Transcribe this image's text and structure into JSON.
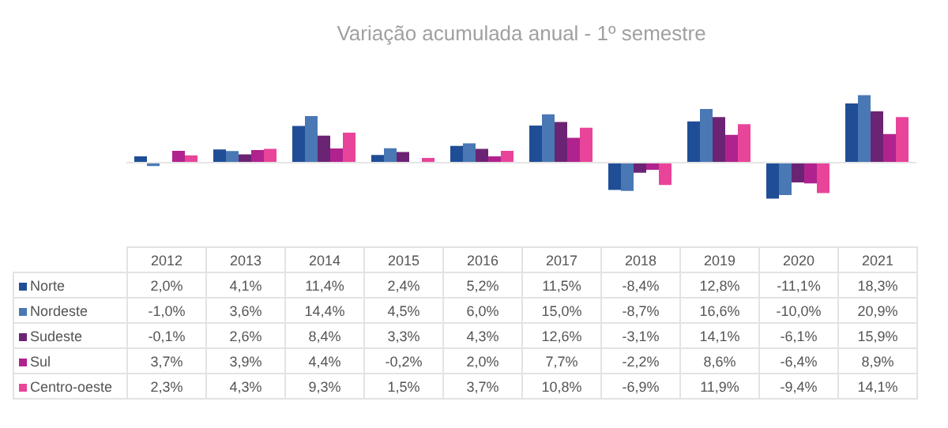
{
  "chart_data": {
    "type": "bar",
    "title": "Variação acumulada anual - 1º semestre",
    "legend": "bottom left",
    "categories": [
      "2012",
      "2013",
      "2014",
      "2015",
      "2016",
      "2017",
      "2018",
      "2019",
      "2020",
      "2021"
    ],
    "series": [
      {
        "name": "Norte",
        "color": "#1f4e96",
        "values": [
          2.0,
          4.1,
          11.4,
          2.4,
          5.2,
          11.5,
          -8.4,
          12.8,
          -11.1,
          18.3
        ],
        "value_labels": [
          "2,0%",
          "4,1%",
          "11,4%",
          "2,4%",
          "5,2%",
          "11,5%",
          "-8,4%",
          "12,8%",
          "-11,1%",
          "18,3%"
        ]
      },
      {
        "name": "Nordeste",
        "color": "#4a78b5",
        "values": [
          -1.0,
          3.6,
          14.4,
          4.5,
          6.0,
          15.0,
          -8.7,
          16.6,
          -10.0,
          20.9
        ],
        "value_labels": [
          "-1,0%",
          "3,6%",
          "14,4%",
          "4,5%",
          "6,0%",
          "15,0%",
          "-8,7%",
          "16,6%",
          "-10,0%",
          "20,9%"
        ]
      },
      {
        "name": "Sudeste",
        "color": "#6b2473",
        "values": [
          -0.1,
          2.6,
          8.4,
          3.3,
          4.3,
          12.6,
          -3.1,
          14.1,
          -6.1,
          15.9
        ],
        "value_labels": [
          "-0,1%",
          "2,6%",
          "8,4%",
          "3,3%",
          "4,3%",
          "12,6%",
          "-3,1%",
          "14,1%",
          "-6,1%",
          "15,9%"
        ]
      },
      {
        "name": "Sul",
        "color": "#b0238f",
        "values": [
          3.7,
          3.9,
          4.4,
          -0.2,
          2.0,
          7.7,
          -2.2,
          8.6,
          -6.4,
          8.9
        ],
        "value_labels": [
          "3,7%",
          "3,9%",
          "4,4%",
          "-0,2%",
          "2,0%",
          "7,7%",
          "-2,2%",
          "8,6%",
          "-6,4%",
          "8,9%"
        ]
      },
      {
        "name": "Centro-oeste",
        "color": "#e8449a",
        "values": [
          2.3,
          4.3,
          9.3,
          1.5,
          3.7,
          10.8,
          -6.9,
          11.9,
          -9.4,
          14.1
        ],
        "value_labels": [
          "2,3%",
          "4,3%",
          "9,3%",
          "1,5%",
          "3,7%",
          "10,8%",
          "-6,9%",
          "11,9%",
          "-9,4%",
          "14,1%"
        ]
      }
    ]
  }
}
